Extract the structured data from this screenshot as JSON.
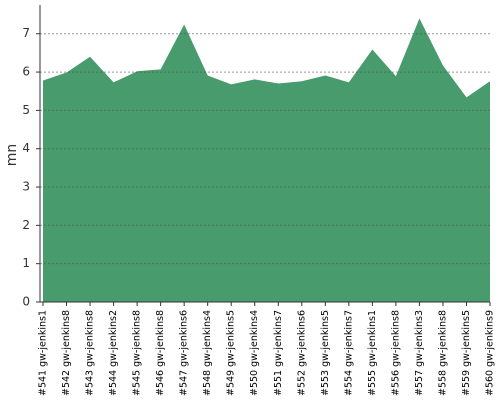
{
  "chart_data": {
    "type": "area",
    "y_label": "mn",
    "categories": [
      "#541 gw-jenkins1",
      "#542 gw-jenkins8",
      "#543 gw-jenkins8",
      "#544 gw-jenkins2",
      "#545 gw-jenkins8",
      "#546 gw-jenkins8",
      "#547 gw-jenkins6",
      "#548 gw-jenkins4",
      "#549 gw-jenkins5",
      "#550 gw-jenkins4",
      "#551 gw-jenkins7",
      "#552 gw-jenkins6",
      "#553 gw-jenkins5",
      "#554 gw-jenkins7",
      "#555 gw-jenkins1",
      "#556 gw-jenkins8",
      "#557 gw-jenkins3",
      "#558 gw-jenkins8",
      "#559 gw-jenkins5",
      "#560 gw-jenkins9"
    ],
    "values": [
      5.78,
      5.99,
      6.4,
      5.73,
      6.02,
      6.07,
      7.24,
      5.91,
      5.68,
      5.81,
      5.7,
      5.76,
      5.91,
      5.73,
      6.59,
      5.89,
      7.4,
      6.17,
      5.34,
      5.76
    ],
    "color": "#479b6c",
    "ylim": [
      0,
      7.75
    ],
    "yticks": [
      0,
      1,
      2,
      3,
      4,
      5,
      6,
      7
    ],
    "grid": true
  }
}
